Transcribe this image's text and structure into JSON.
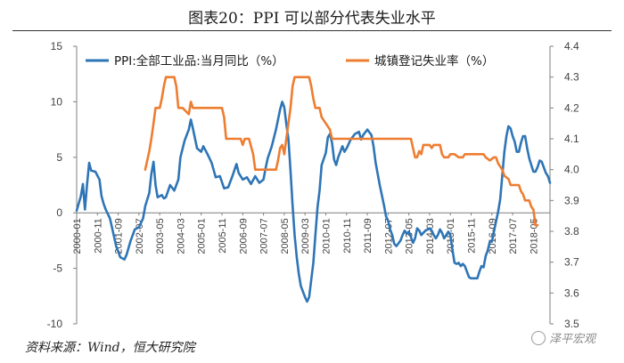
{
  "chart_data": {
    "type": "line",
    "title": "图表20：PPI 可以部分代表失业水平",
    "source": "资料来源：Wind，恒大研究院",
    "watermark": "泽平宏观",
    "left_axis": {
      "min": -10,
      "max": 15,
      "ticks": [
        "15",
        "10",
        "5",
        "0",
        "-5",
        "-10"
      ]
    },
    "right_axis": {
      "min": 3.5,
      "max": 4.4,
      "ticks": [
        "4.4",
        "4.3",
        "4.2",
        "4.1",
        "4.0",
        "3.9",
        "3.8",
        "3.7",
        "3.6",
        "3.5"
      ]
    },
    "x_tick_labels": [
      "2000-01",
      "2000-11",
      "2001-09",
      "2002-07",
      "2003-05",
      "2004-03",
      "2005-01",
      "2005-11",
      "2006-09",
      "2007-07",
      "2008-05",
      "2009-03",
      "2010-01",
      "2010-11",
      "2011-09",
      "2012-07",
      "2013-05",
      "2014-03",
      "2015-01",
      "2015-11",
      "2016-09",
      "2017-07",
      "2018-05"
    ],
    "series": [
      {
        "name": "PPI:全部工业品:当月同比（%）",
        "color": "#2e75b6",
        "axis": "left",
        "points": [
          [
            0,
            0.2
          ],
          [
            2,
            1.5
          ],
          [
            3,
            2.6
          ],
          [
            4,
            0.3
          ],
          [
            5,
            2.5
          ],
          [
            6,
            4.5
          ],
          [
            7,
            3.8
          ],
          [
            9,
            3.7
          ],
          [
            11,
            3.0
          ],
          [
            12,
            1.5
          ],
          [
            13,
            0.8
          ],
          [
            14,
            0.3
          ],
          [
            16,
            -0.5
          ],
          [
            17,
            -1.3
          ],
          [
            19,
            -3.0
          ],
          [
            21,
            -4.0
          ],
          [
            23,
            -4.2
          ],
          [
            24,
            -3.8
          ],
          [
            26,
            -2.5
          ],
          [
            28,
            -1.5
          ],
          [
            30,
            -1.3
          ],
          [
            32,
            -0.5
          ],
          [
            33,
            0.6
          ],
          [
            35,
            1.8
          ],
          [
            36,
            3.5
          ],
          [
            37,
            4.6
          ],
          [
            38,
            2.5
          ],
          [
            39,
            1.4
          ],
          [
            40,
            1.5
          ],
          [
            41,
            1.6
          ],
          [
            42,
            1.3
          ],
          [
            43,
            1.4
          ],
          [
            45,
            2.5
          ],
          [
            47,
            2.0
          ],
          [
            49,
            3.0
          ],
          [
            50,
            5.0
          ],
          [
            52,
            6.5
          ],
          [
            54,
            7.5
          ],
          [
            55,
            8.4
          ],
          [
            56,
            7.6
          ],
          [
            58,
            5.8
          ],
          [
            60,
            5.5
          ],
          [
            61,
            6.0
          ],
          [
            63,
            5.3
          ],
          [
            65,
            4.5
          ],
          [
            67,
            3.2
          ],
          [
            69,
            3.3
          ],
          [
            71,
            2.2
          ],
          [
            73,
            2.3
          ],
          [
            75,
            3.3
          ],
          [
            77,
            4.4
          ],
          [
            78,
            3.6
          ],
          [
            80,
            3.0
          ],
          [
            82,
            3.2
          ],
          [
            84,
            2.6
          ],
          [
            86,
            3.3
          ],
          [
            88,
            2.7
          ],
          [
            90,
            3.0
          ],
          [
            91,
            4.0
          ],
          [
            92,
            4.9
          ],
          [
            94,
            6.0
          ],
          [
            96,
            7.5
          ],
          [
            98,
            9.3
          ],
          [
            99,
            10.0
          ],
          [
            100,
            9.5
          ],
          [
            101,
            8.0
          ],
          [
            102,
            6.6
          ],
          [
            103,
            3.8
          ],
          [
            104,
            0.7
          ],
          [
            105,
            -2.0
          ],
          [
            106,
            -4.0
          ],
          [
            107,
            -5.5
          ],
          [
            108,
            -6.6
          ],
          [
            110,
            -7.6
          ],
          [
            111,
            -8.0
          ],
          [
            112,
            -7.6
          ],
          [
            113,
            -6.0
          ],
          [
            114,
            -4.5
          ],
          [
            115,
            -2.0
          ],
          [
            116,
            0.5
          ],
          [
            117,
            2.0
          ],
          [
            118,
            4.3
          ],
          [
            120,
            5.4
          ],
          [
            121,
            6.8
          ],
          [
            122,
            7.1
          ],
          [
            123,
            6.3
          ],
          [
            124,
            4.8
          ],
          [
            125,
            4.3
          ],
          [
            126,
            5.0
          ],
          [
            128,
            6.0
          ],
          [
            129,
            5.5
          ],
          [
            130,
            5.8
          ],
          [
            132,
            6.6
          ],
          [
            134,
            7.1
          ],
          [
            136,
            7.3
          ],
          [
            137,
            6.6
          ],
          [
            138,
            7.0
          ],
          [
            140,
            7.5
          ],
          [
            142,
            7.0
          ],
          [
            143,
            6.0
          ],
          [
            144,
            4.5
          ],
          [
            146,
            2.5
          ],
          [
            148,
            0.7
          ],
          [
            149,
            -0.3
          ],
          [
            150,
            -0.7
          ],
          [
            151,
            -1.5
          ],
          [
            152,
            -2.0
          ],
          [
            153,
            -2.8
          ],
          [
            154,
            -3.0
          ],
          [
            156,
            -2.5
          ],
          [
            157,
            -2.0
          ],
          [
            158,
            -1.6
          ],
          [
            159,
            -1.9
          ],
          [
            160,
            -1.7
          ],
          [
            161,
            -2.2
          ],
          [
            162,
            -2.7
          ],
          [
            163,
            -2.3
          ],
          [
            164,
            -1.4
          ],
          [
            165,
            -1.6
          ],
          [
            166,
            -2.0
          ],
          [
            168,
            -1.6
          ],
          [
            170,
            -1.4
          ],
          [
            171,
            -1.6
          ],
          [
            172,
            -2.0
          ],
          [
            173,
            -2.3
          ],
          [
            174,
            -2.0
          ],
          [
            175,
            -1.5
          ],
          [
            176,
            -1.8
          ],
          [
            177,
            -2.3
          ],
          [
            178,
            -2.0
          ],
          [
            179,
            -1.7
          ],
          [
            180,
            -2.0
          ],
          [
            181,
            -3.3
          ],
          [
            182,
            -4.5
          ],
          [
            183,
            -4.6
          ],
          [
            184,
            -4.5
          ],
          [
            185,
            -4.8
          ],
          [
            186,
            -4.6
          ],
          [
            187,
            -4.8
          ],
          [
            188,
            -5.3
          ],
          [
            189,
            -5.8
          ],
          [
            190,
            -5.9
          ],
          [
            191,
            -5.9
          ],
          [
            192,
            -5.9
          ],
          [
            193,
            -5.9
          ],
          [
            194,
            -5.3
          ],
          [
            195,
            -4.8
          ],
          [
            196,
            -4.9
          ],
          [
            197,
            -3.9
          ],
          [
            198,
            -3.4
          ],
          [
            199,
            -2.6
          ],
          [
            200,
            -2.6
          ],
          [
            201,
            -1.7
          ],
          [
            202,
            -0.8
          ],
          [
            203,
            0.1
          ],
          [
            204,
            1.2
          ],
          [
            205,
            3.3
          ],
          [
            206,
            5.5
          ],
          [
            207,
            6.9
          ],
          [
            208,
            7.8
          ],
          [
            209,
            7.6
          ],
          [
            210,
            6.9
          ],
          [
            211,
            6.4
          ],
          [
            212,
            5.5
          ],
          [
            213,
            5.5
          ],
          [
            214,
            6.3
          ],
          [
            215,
            6.9
          ],
          [
            216,
            6.9
          ],
          [
            217,
            5.8
          ],
          [
            218,
            4.9
          ],
          [
            219,
            4.3
          ],
          [
            220,
            3.7
          ],
          [
            221,
            3.7
          ],
          [
            222,
            4.1
          ],
          [
            223,
            4.7
          ],
          [
            224,
            4.6
          ],
          [
            225,
            4.1
          ],
          [
            226,
            3.6
          ],
          [
            227,
            3.3
          ],
          [
            228,
            2.7
          ]
        ]
      },
      {
        "name": "城镇登记失业率（%）",
        "color": "#ed7d31",
        "axis": "right",
        "points": [
          [
            33,
            4.0
          ],
          [
            34,
            4.03
          ],
          [
            35,
            4.06
          ],
          [
            36,
            4.1
          ],
          [
            37,
            4.15
          ],
          [
            38,
            4.2
          ],
          [
            40,
            4.2
          ],
          [
            41,
            4.23
          ],
          [
            42,
            4.27
          ],
          [
            43,
            4.3
          ],
          [
            45,
            4.3
          ],
          [
            47,
            4.3
          ],
          [
            48,
            4.27
          ],
          [
            49,
            4.2
          ],
          [
            51,
            4.2
          ],
          [
            54,
            4.18
          ],
          [
            55,
            4.22
          ],
          [
            56,
            4.2
          ],
          [
            59,
            4.2
          ],
          [
            63,
            4.2
          ],
          [
            66,
            4.2
          ],
          [
            67,
            4.2
          ],
          [
            70,
            4.2
          ],
          [
            71,
            4.17
          ],
          [
            72,
            4.1
          ],
          [
            75,
            4.1
          ],
          [
            77,
            4.1
          ],
          [
            79,
            4.1
          ],
          [
            80,
            4.08
          ],
          [
            81,
            4.1
          ],
          [
            83,
            4.1
          ],
          [
            85,
            4.05
          ],
          [
            86,
            4.0
          ],
          [
            89,
            4.0
          ],
          [
            92,
            4.0
          ],
          [
            95,
            4.0
          ],
          [
            96,
            4.0
          ],
          [
            97,
            4.03
          ],
          [
            98,
            4.07
          ],
          [
            99,
            4.08
          ],
          [
            100,
            4.05
          ],
          [
            101,
            4.1
          ],
          [
            103,
            4.2
          ],
          [
            104,
            4.27
          ],
          [
            105,
            4.3
          ],
          [
            108,
            4.3
          ],
          [
            111,
            4.3
          ],
          [
            112,
            4.3
          ],
          [
            113,
            4.27
          ],
          [
            114,
            4.23
          ],
          [
            115,
            4.2
          ],
          [
            117,
            4.2
          ],
          [
            118,
            4.17
          ],
          [
            119,
            4.16
          ],
          [
            120,
            4.15
          ],
          [
            122,
            4.13
          ],
          [
            123,
            4.1
          ],
          [
            125,
            4.1
          ],
          [
            128,
            4.1
          ],
          [
            131,
            4.1
          ],
          [
            134,
            4.1
          ],
          [
            137,
            4.1
          ],
          [
            140,
            4.1
          ],
          [
            143,
            4.1
          ],
          [
            146,
            4.1
          ],
          [
            149,
            4.1
          ],
          [
            152,
            4.1
          ],
          [
            155,
            4.1
          ],
          [
            158,
            4.1
          ],
          [
            161,
            4.1
          ],
          [
            162,
            4.07
          ],
          [
            163,
            4.04
          ],
          [
            164,
            4.04
          ],
          [
            165,
            4.06
          ],
          [
            166,
            4.05
          ],
          [
            167,
            4.08
          ],
          [
            170,
            4.08
          ],
          [
            171,
            4.07
          ],
          [
            172,
            4.08
          ],
          [
            174,
            4.08
          ],
          [
            175,
            4.08
          ],
          [
            176,
            4.05
          ],
          [
            177,
            4.04
          ],
          [
            179,
            4.04
          ],
          [
            180,
            4.05
          ],
          [
            182,
            4.05
          ],
          [
            184,
            4.04
          ],
          [
            186,
            4.04
          ],
          [
            187,
            4.05
          ],
          [
            189,
            4.05
          ],
          [
            191,
            4.05
          ],
          [
            193,
            4.05
          ],
          [
            195,
            4.05
          ],
          [
            196,
            4.05
          ],
          [
            197,
            4.04
          ],
          [
            199,
            4.03
          ],
          [
            201,
            4.04
          ],
          [
            202,
            4.04
          ],
          [
            203,
            4.02
          ],
          [
            205,
            4.0
          ],
          [
            206,
            3.98
          ],
          [
            208,
            3.97
          ],
          [
            209,
            3.95
          ],
          [
            211,
            3.95
          ],
          [
            213,
            3.95
          ],
          [
            214,
            3.93
          ],
          [
            215,
            3.92
          ],
          [
            216,
            3.9
          ],
          [
            218,
            3.9
          ],
          [
            219,
            3.88
          ],
          [
            220,
            3.87
          ],
          [
            221,
            3.82
          ],
          [
            222,
            3.82
          ]
        ]
      }
    ]
  }
}
